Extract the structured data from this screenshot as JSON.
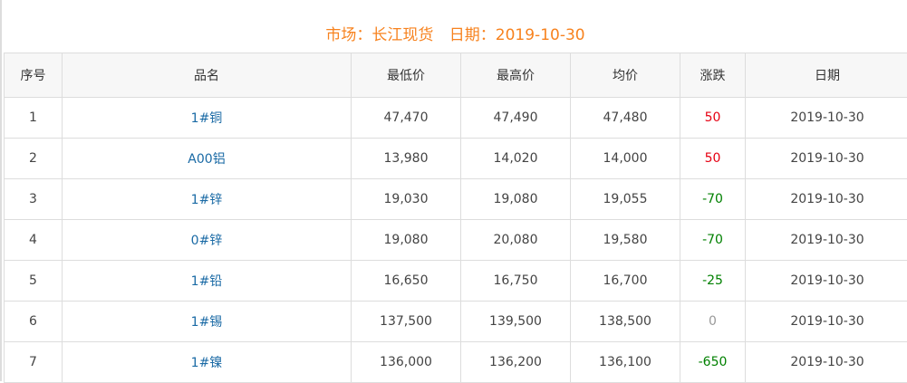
{
  "header": {
    "market_label": "市场：长江现货",
    "date_label": "日期：2019-10-30"
  },
  "colors": {
    "title": "#f7821e",
    "name_link": "#1a6aa5",
    "up": "#e60012",
    "down": "#008000",
    "flat": "#999999"
  },
  "table": {
    "columns": [
      "序号",
      "品名",
      "最低价",
      "最高价",
      "均价",
      "涨跌",
      "日期"
    ],
    "rows": [
      {
        "no": "1",
        "name": "1#铜",
        "low": "47,470",
        "high": "47,490",
        "avg": "47,480",
        "change": "50",
        "date": "2019-10-30"
      },
      {
        "no": "2",
        "name": "A00铝",
        "low": "13,980",
        "high": "14,020",
        "avg": "14,000",
        "change": "50",
        "date": "2019-10-30"
      },
      {
        "no": "3",
        "name": "1#锌",
        "low": "19,030",
        "high": "19,080",
        "avg": "19,055",
        "change": "-70",
        "date": "2019-10-30"
      },
      {
        "no": "4",
        "name": "0#锌",
        "low": "19,080",
        "high": "20,080",
        "avg": "19,580",
        "change": "-70",
        "date": "2019-10-30"
      },
      {
        "no": "5",
        "name": "1#铅",
        "low": "16,650",
        "high": "16,750",
        "avg": "16,700",
        "change": "-25",
        "date": "2019-10-30"
      },
      {
        "no": "6",
        "name": "1#锡",
        "low": "137,500",
        "high": "139,500",
        "avg": "138,500",
        "change": "0",
        "date": "2019-10-30"
      },
      {
        "no": "7",
        "name": "1#镍",
        "low": "136,000",
        "high": "136,200",
        "avg": "136,100",
        "change": "-650",
        "date": "2019-10-30"
      }
    ]
  }
}
